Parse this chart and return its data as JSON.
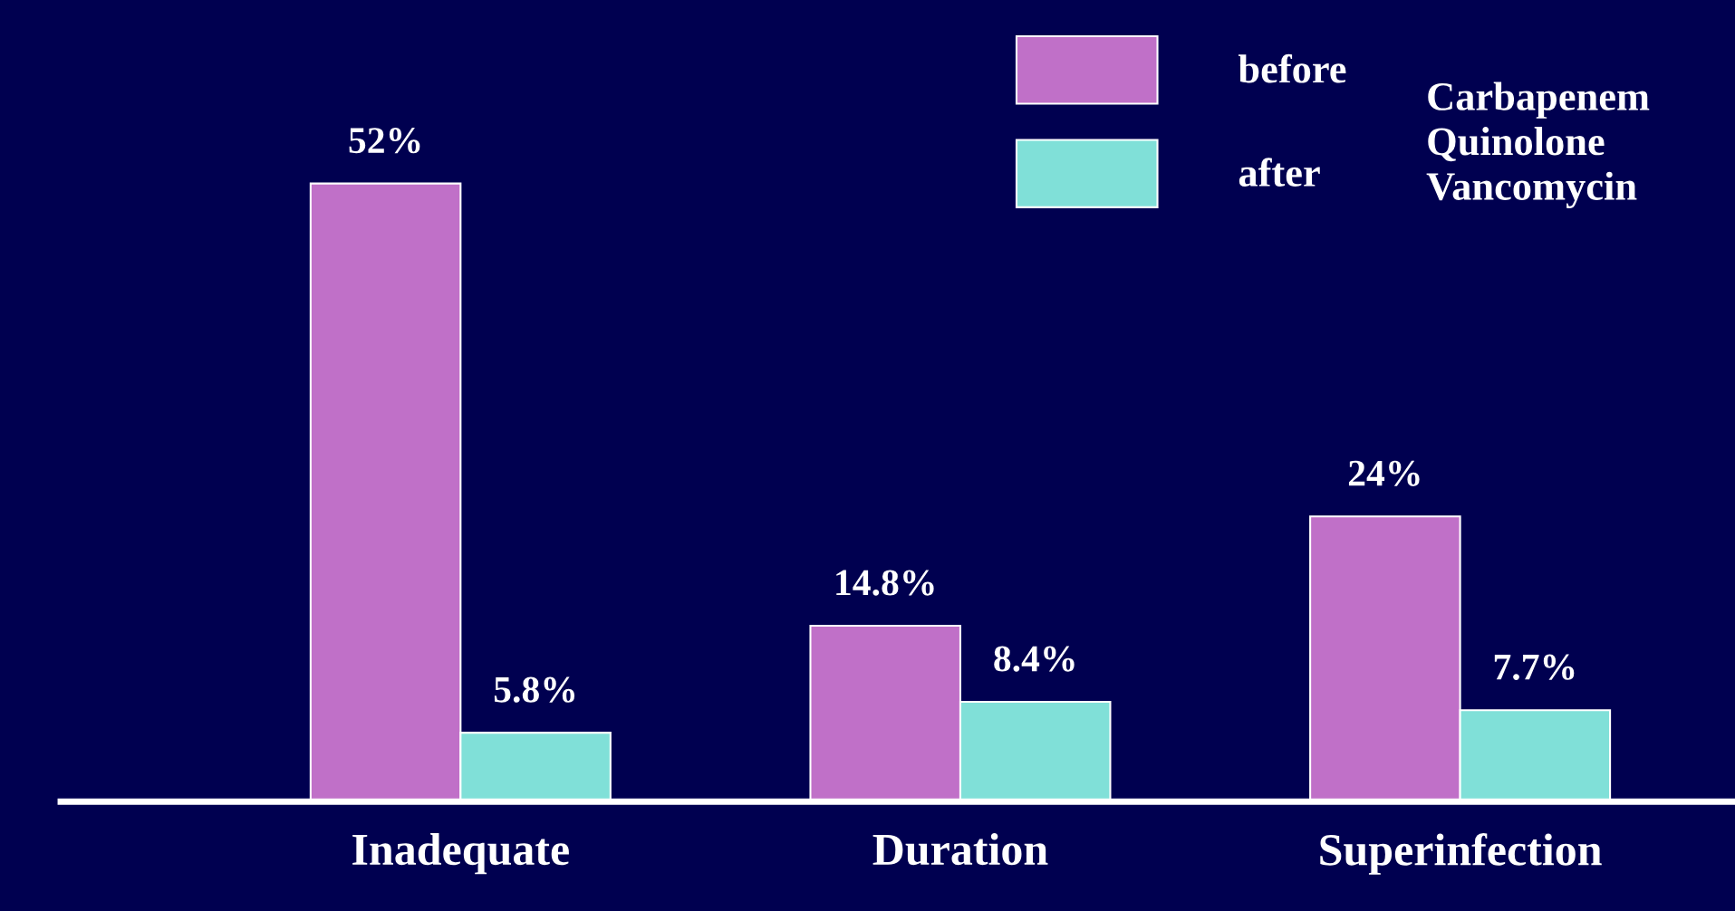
{
  "chart_data": {
    "type": "bar",
    "categories": [
      "Inadequate",
      "Duration",
      "Superinfection"
    ],
    "series": [
      {
        "name": "before",
        "color": "#c070c8",
        "values": [
          52,
          14.8,
          24
        ],
        "value_labels": [
          "52%",
          "14.8%",
          "24%"
        ]
      },
      {
        "name": "after",
        "color": "#80e0d8",
        "values": [
          5.8,
          8.4,
          7.7
        ],
        "value_labels": [
          "5.8%",
          "8.4%",
          "7.7%"
        ]
      }
    ],
    "annotations": [
      "Carbapenem\nQuinolone\nVancomycin"
    ],
    "legend": "top right",
    "grid": false
  }
}
